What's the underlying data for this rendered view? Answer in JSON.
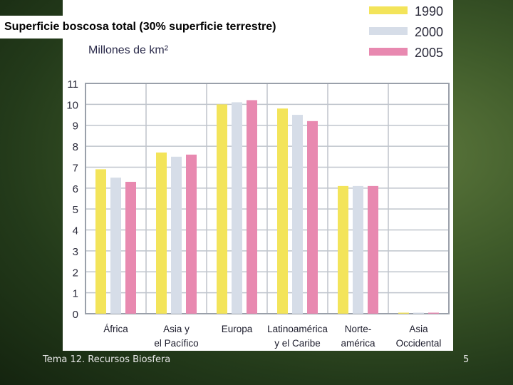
{
  "slide": {
    "title": "Superficie boscosa total (30% superficie terrestre)",
    "footer": "Tema 12. Recursos Biosfera",
    "page_number": "5"
  },
  "chart_data": {
    "type": "bar",
    "ylabel": "Millones de km²",
    "ylim": [
      0,
      11
    ],
    "yticks": [
      0,
      1,
      2,
      3,
      4,
      5,
      6,
      7,
      8,
      9,
      10,
      11
    ],
    "grid": true,
    "legend_position": "top-right",
    "categories": [
      [
        "África"
      ],
      [
        "Asia y",
        "el Pacífico"
      ],
      [
        "Europa"
      ],
      [
        "Latinoamérica",
        "y el Caribe"
      ],
      [
        "Norte-",
        "américa"
      ],
      [
        "Asia",
        "Occidental"
      ]
    ],
    "series": [
      {
        "name": "1990",
        "color": "#f3e45a",
        "values": [
          6.9,
          7.7,
          10.0,
          9.8,
          6.1,
          0.05
        ]
      },
      {
        "name": "2000",
        "color": "#d6dde8",
        "values": [
          6.5,
          7.5,
          10.1,
          9.5,
          6.1,
          0.05
        ]
      },
      {
        "name": "2005",
        "color": "#e889b0",
        "values": [
          6.3,
          7.6,
          10.2,
          9.2,
          6.1,
          0.05
        ]
      }
    ]
  }
}
